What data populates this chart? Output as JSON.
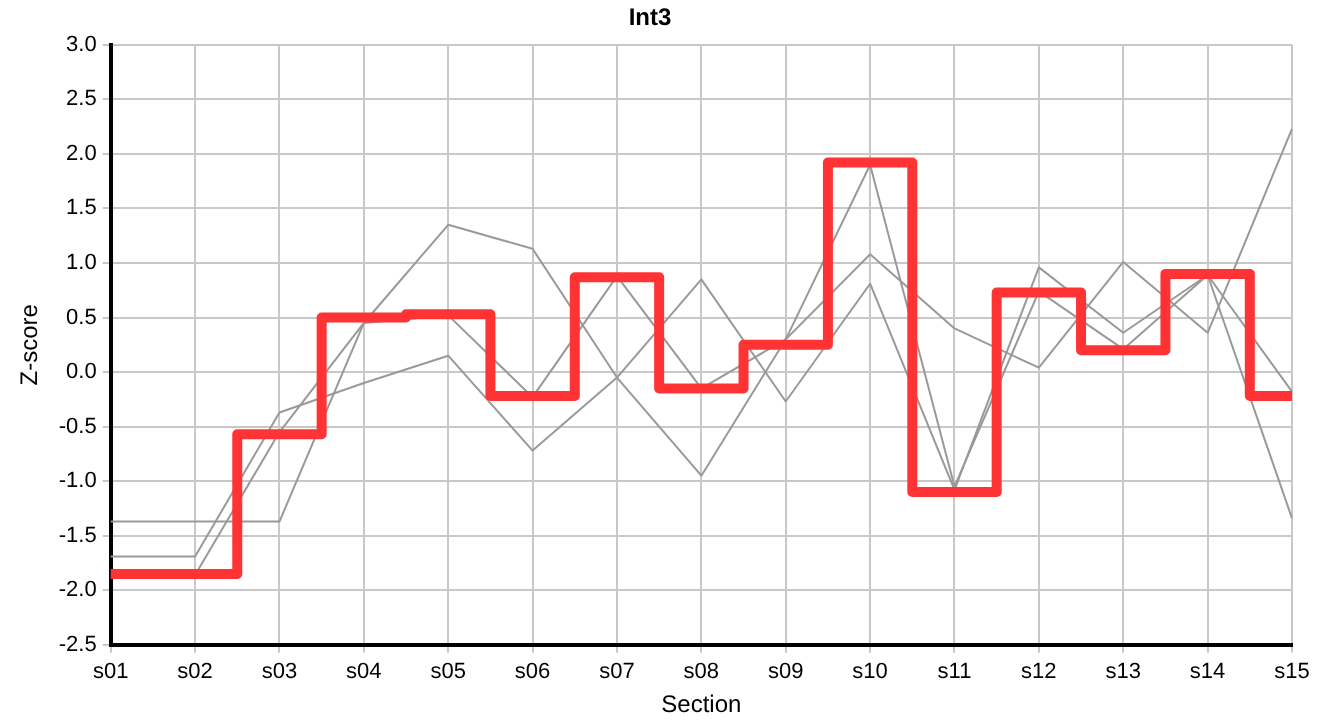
{
  "chart_data": {
    "type": "line",
    "title": "Int3",
    "xlabel": "Section",
    "ylabel": "Z-score",
    "categories": [
      "s01",
      "s02",
      "s03",
      "s04",
      "s05",
      "s06",
      "s07",
      "s08",
      "s09",
      "s10",
      "s11",
      "s12",
      "s13",
      "s14",
      "s15"
    ],
    "series": [
      {
        "type": "line",
        "color": "#999999",
        "values": [
          -1.37,
          -1.37,
          -1.37,
          0.45,
          1.35,
          1.13,
          -0.05,
          -0.95,
          0.3,
          1.08,
          0.4,
          0.04,
          1.01,
          0.36,
          2.23
        ]
      },
      {
        "type": "line",
        "color": "#999999",
        "values": [
          -1.69,
          -1.69,
          -0.37,
          -0.1,
          0.15,
          -0.72,
          -0.05,
          0.85,
          -0.27,
          0.81,
          -1.08,
          0.96,
          0.36,
          0.89,
          -1.34
        ]
      },
      {
        "type": "line",
        "color": "#999999",
        "values": [
          null,
          -1.86,
          -0.55,
          0.45,
          0.52,
          -0.23,
          0.88,
          -0.15,
          0.3,
          1.9,
          -1.05,
          0.74,
          0.21,
          0.89,
          -0.18
        ]
      },
      {
        "type": "step",
        "color": "#ff3333",
        "values": [
          -1.85,
          -1.85,
          -0.57,
          0.5,
          0.53,
          -0.22,
          0.87,
          -0.15,
          0.25,
          1.92,
          -1.1,
          0.73,
          0.2,
          0.9,
          -0.22
        ]
      }
    ],
    "ylim": [
      -2.5,
      3.0
    ],
    "yticks": [
      -2.5,
      {
        "value": -2,
        "label": "-2.0"
      },
      -1.5,
      {
        "value": -1,
        "label": "-1.0"
      },
      -0.5,
      {
        "value": 0,
        "label": "0.0"
      },
      0.5,
      {
        "value": 1,
        "label": "1.0"
      },
      1.5,
      {
        "value": 2,
        "label": "2.0"
      },
      2.5,
      {
        "value": 3,
        "label": "3.0"
      }
    ],
    "grid": true,
    "legend": false,
    "marker": "none",
    "line_style": "solid"
  }
}
